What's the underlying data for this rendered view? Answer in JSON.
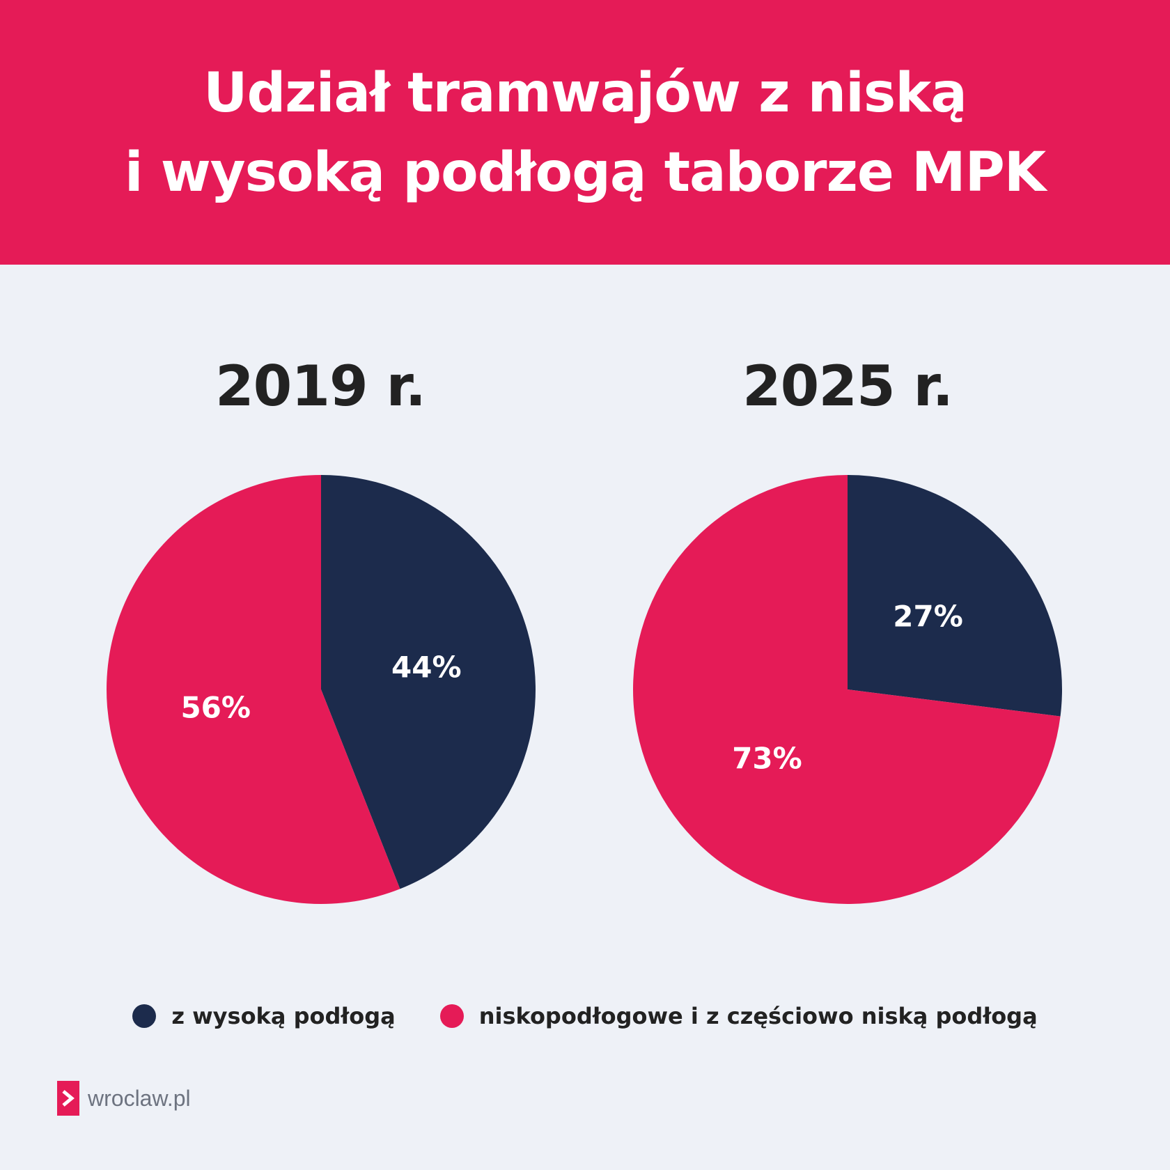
{
  "header": {
    "title_line1": "Udział tramwajów z niską",
    "title_line2": "i wysoką podłogą taborze MPK"
  },
  "colors": {
    "accent": "#e51b57",
    "navy": "#1c2b4c",
    "background": "#eef1f7"
  },
  "chart_data": [
    {
      "type": "pie",
      "title": "2019 r.",
      "slices": [
        {
          "label": "z wysoką podłogą",
          "value": 44,
          "display": "44%",
          "color": "#1c2b4c"
        },
        {
          "label": "niskopodłogowe i z częściowo niską podłogą",
          "value": 56,
          "display": "56%",
          "color": "#e51b57"
        }
      ]
    },
    {
      "type": "pie",
      "title": "2025 r.",
      "slices": [
        {
          "label": "z wysoką podłogą",
          "value": 27,
          "display": "27%",
          "color": "#1c2b4c"
        },
        {
          "label": "niskopodłogowe i z częściowo niską podłogą",
          "value": 73,
          "display": "73%",
          "color": "#e51b57"
        }
      ]
    }
  ],
  "legend": [
    {
      "label": "z wysoką podłogą",
      "color": "#1c2b4c"
    },
    {
      "label": "niskopodłogowe i z częściowo niską podłogą",
      "color": "#e51b57"
    }
  ],
  "logo": {
    "text": "wroclaw.pl",
    "icon": "chevron-right-icon"
  }
}
